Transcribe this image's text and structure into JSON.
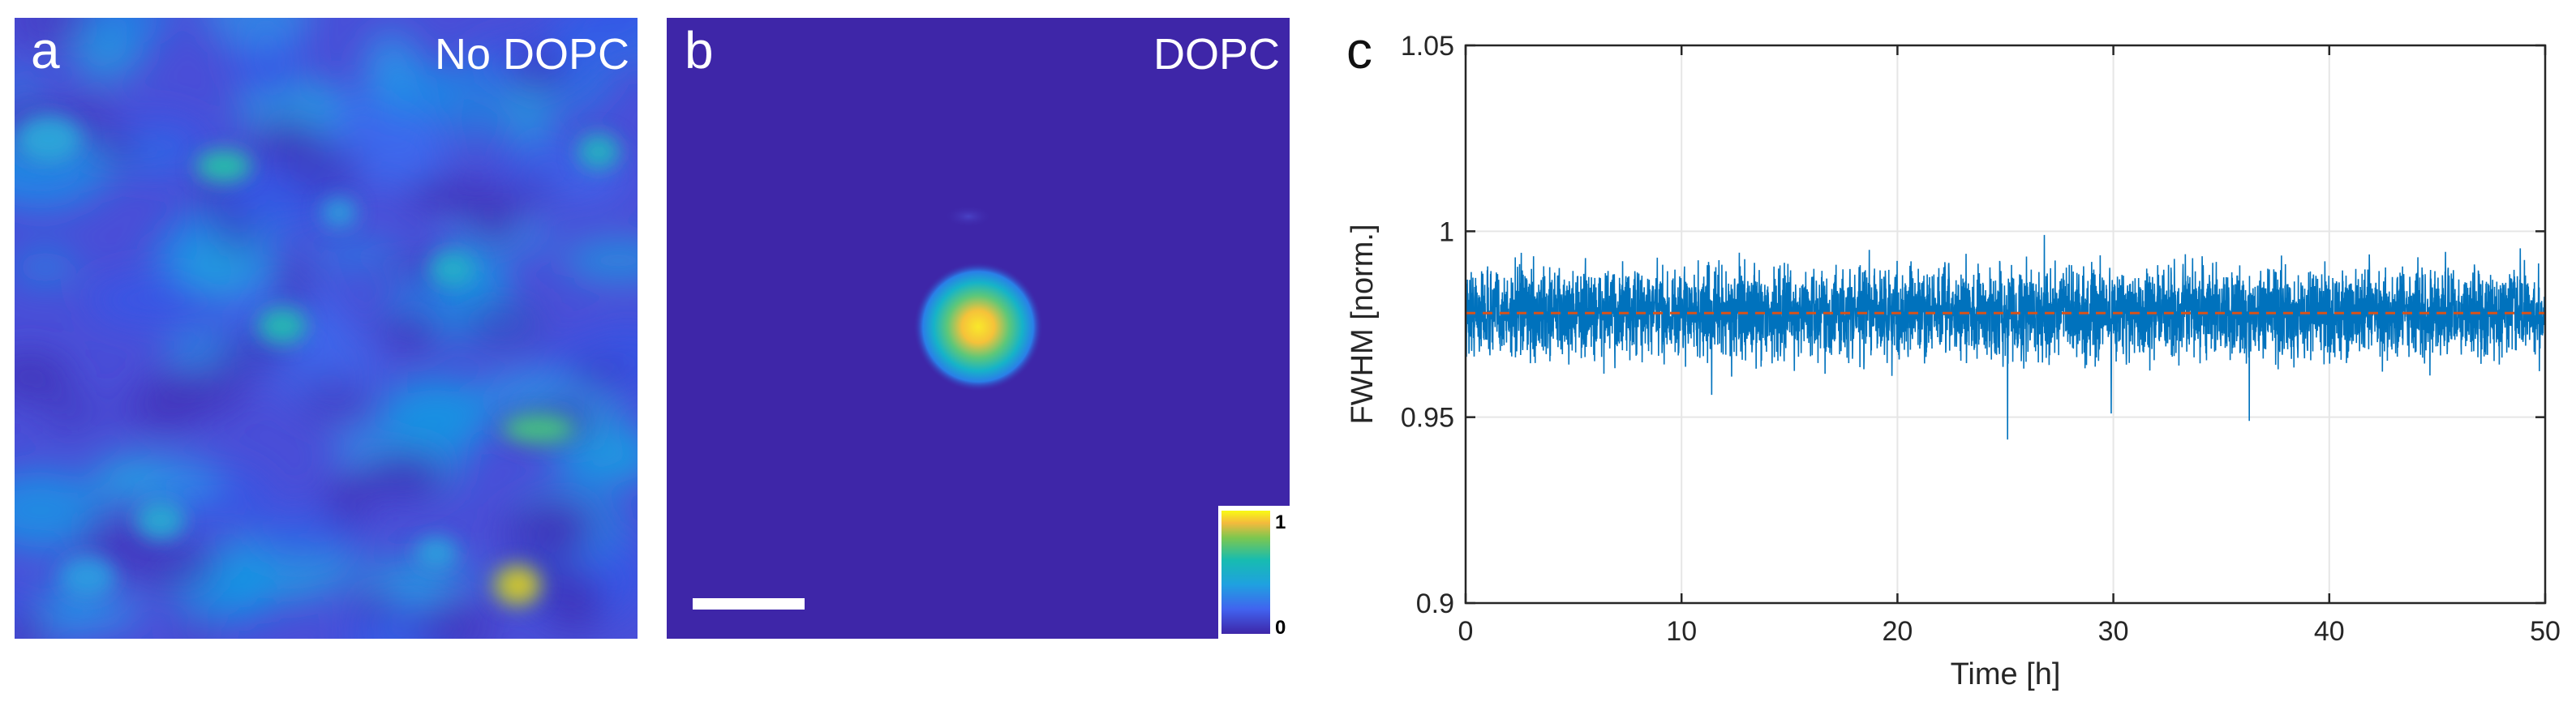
{
  "panels": {
    "a": {
      "letter": "a",
      "title": "No DOPC"
    },
    "b": {
      "letter": "b",
      "title": "DOPC"
    },
    "c": {
      "letter": "c"
    }
  },
  "colorbar": {
    "max_label": "1",
    "min_label": "0"
  },
  "colors": {
    "map_background": "#3e26a8",
    "line": "#0072bd",
    "mean_line": "#d95319",
    "grid": "#e6e6e6",
    "axis": "#262626"
  },
  "chart_data": {
    "type": "line",
    "title": "",
    "xlabel": "Time [h]",
    "ylabel": "FWHM [norm.]",
    "xlim": [
      0,
      50
    ],
    "ylim": [
      0.9,
      1.05
    ],
    "xticks": [
      0,
      10,
      20,
      30,
      40,
      50
    ],
    "yticks": [
      0.9,
      0.95,
      1,
      1.05
    ],
    "xtick_labels": [
      "0",
      "10",
      "20",
      "30",
      "40",
      "50"
    ],
    "ytick_labels": [
      "0.9",
      "0.95",
      "1",
      "1.05"
    ],
    "grid": true,
    "series": [
      {
        "name": "FWHM",
        "style": "solid",
        "description": "noisy trace",
        "mean": 0.978,
        "noise_band": [
          0.965,
          0.99
        ],
        "extremes": [
          {
            "x": 2.3,
            "y": 0.993
          },
          {
            "x": 11.4,
            "y": 0.956
          },
          {
            "x": 18.7,
            "y": 0.995
          },
          {
            "x": 25.1,
            "y": 0.944
          },
          {
            "x": 26.8,
            "y": 0.999
          },
          {
            "x": 29.9,
            "y": 0.951
          },
          {
            "x": 36.3,
            "y": 0.949
          },
          {
            "x": 44.1,
            "y": 0.993
          }
        ]
      },
      {
        "name": "mean",
        "style": "dashed",
        "value": 0.978
      }
    ]
  }
}
